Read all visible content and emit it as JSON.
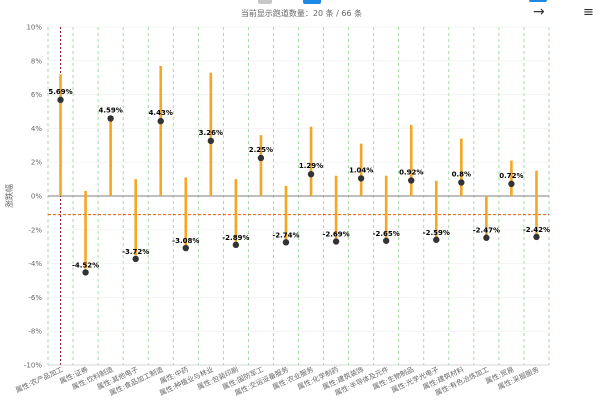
{
  "header": {
    "status_text": "当前显示跑道数量：20 条 / 66 条",
    "arrow_icon": "arrow-right-icon",
    "menu_icon": "hamburger-menu-icon"
  },
  "chart_data": {
    "type": "scatter",
    "title": "",
    "xlabel": "",
    "ylabel": "涨跌幅",
    "ylim": [
      -10,
      10
    ],
    "yticks": [
      "-10%",
      "-8%",
      "-6%",
      "-4%",
      "-2%",
      "0%",
      "2%",
      "4%",
      "6%",
      "8%",
      "10%"
    ],
    "grid": "vertical dashed",
    "reference_line": -1.1,
    "categories": [
      "属性:农产品加工",
      "属性:证券",
      "属性:饮料制造",
      "属性:其他电子",
      "属性:食品加工制造",
      "属性:中药",
      "属性:种植业与林业",
      "属性:包装印刷",
      "属性:国防军工",
      "属性:交运设备服务",
      "属性:农业服务",
      "属性:化学制药",
      "属性:建筑装饰",
      "属性:半导体及元件",
      "属性:生物制品",
      "属性:光学光电子",
      "属性:建筑材料",
      "属性:有色冶炼加工",
      "属性:贸易",
      "属性:采掘服务"
    ],
    "values": [
      5.69,
      -4.52,
      4.59,
      -3.72,
      4.43,
      -3.08,
      3.26,
      -2.89,
      2.25,
      -2.74,
      1.29,
      -2.69,
      1.04,
      -2.65,
      0.92,
      -2.59,
      0.8,
      -2.47,
      0.72,
      -2.42
    ],
    "labels": [
      "5.69%",
      "-4.52%",
      "4.59%",
      "-3.72%",
      "4.43%",
      "-3.08%",
      "3.26%",
      "-2.89%",
      "2.25%",
      "-2.74%",
      "1.29%",
      "-2.69%",
      "1.04%",
      "-2.65%",
      "0.92%",
      "-2.59%",
      "0.8%",
      "-2.47%",
      "0.72%",
      "-2.42%"
    ],
    "range_low": [
      0,
      -4.3,
      0,
      -3.5,
      0,
      -3.0,
      0,
      -2.8,
      0,
      -2.6,
      0,
      -2.5,
      0,
      -2.6,
      0,
      -2.5,
      0,
      -2.4,
      0,
      -2.3
    ],
    "range_high": [
      7.2,
      0.3,
      4.7,
      1.0,
      7.7,
      1.1,
      7.3,
      1.0,
      3.6,
      0.6,
      4.1,
      1.2,
      3.1,
      1.2,
      4.2,
      0.9,
      3.4,
      0.0,
      2.1,
      1.5
    ],
    "colors": {
      "bar": "#f5a623",
      "point": "#333333",
      "zero_line": "#999999",
      "reference_line": "#e8590c",
      "highlight_line": "#8b1a2b",
      "grid": "#8fd18f"
    }
  }
}
